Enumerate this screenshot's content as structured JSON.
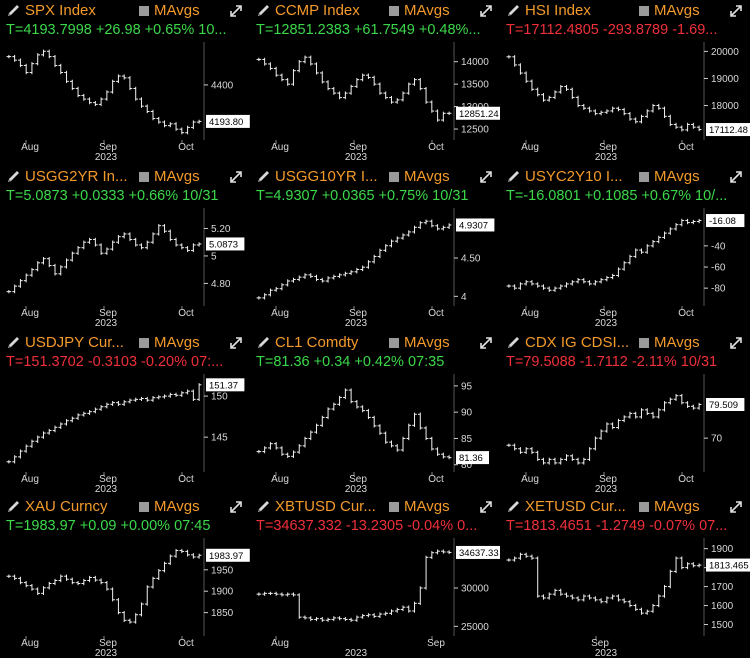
{
  "ui": {
    "mavgs_label": "MAvgs",
    "pen_icon": "pencil-icon",
    "expand_icon": "expand-arrows-icon"
  },
  "chart_data": [
    {
      "type": "bar",
      "title": "SPX Index",
      "quote": "T=4193.7998 +26.98 +0.65% 10...",
      "direction": "up",
      "x_labels": [
        "Aug",
        "Sep",
        "Oct"
      ],
      "year": "2023",
      "y_ticks": [
        4400
      ],
      "ylim": [
        4100,
        4620
      ],
      "last_label": "4193.80",
      "values": [
        4560,
        4540,
        4510,
        4470,
        4520,
        4570,
        4590,
        4560,
        4510,
        4470,
        4420,
        4380,
        4340,
        4320,
        4300,
        4290,
        4320,
        4360,
        4420,
        4450,
        4440,
        4380,
        4320,
        4280,
        4250,
        4210,
        4190,
        4170,
        4180,
        4150,
        4130,
        4160,
        4190,
        4193.8
      ]
    },
    {
      "type": "bar",
      "title": "CCMP Index",
      "quote": "T=12851.2383 +61.7549 +0.48%...",
      "direction": "up",
      "x_labels": [
        "Aug",
        "Sep",
        "Oct"
      ],
      "year": "2023",
      "y_ticks": [
        12500,
        13000,
        13500,
        14000
      ],
      "ylim": [
        12300,
        14350
      ],
      "last_label": "12851.24",
      "values": [
        14050,
        13950,
        13850,
        13700,
        13600,
        13500,
        13800,
        14000,
        14100,
        13950,
        13750,
        13550,
        13400,
        13300,
        13200,
        13300,
        13450,
        13600,
        13700,
        13650,
        13500,
        13300,
        13200,
        13100,
        13150,
        13300,
        13500,
        13600,
        13400,
        13100,
        12900,
        12700,
        12850,
        12851.24
      ]
    },
    {
      "type": "bar",
      "title": "HSI Index",
      "quote": "T=17112.4805 -293.8789 -1.69...",
      "direction": "down",
      "x_labels": [
        "Aug",
        "Sep",
        "Oct"
      ],
      "year": "2023",
      "y_ticks": [
        18000,
        19000,
        20000
      ],
      "ylim": [
        16800,
        20200
      ],
      "last_label": "17112.48",
      "values": [
        19800,
        19500,
        19200,
        18900,
        18600,
        18400,
        18200,
        18300,
        18500,
        18700,
        18600,
        18300,
        18000,
        17900,
        17800,
        17700,
        17750,
        17800,
        17900,
        17850,
        17700,
        17500,
        17400,
        17600,
        17800,
        18000,
        17900,
        17600,
        17300,
        17200,
        17100,
        17300,
        17200,
        17112.48
      ]
    },
    {
      "type": "bar",
      "title": "USGG2YR In...",
      "quote": "T=5.0873 +0.0333 +0.66% 10/31",
      "direction": "up",
      "x_labels": [
        "Aug",
        "Sep",
        "Oct"
      ],
      "year": "2023",
      "y_ticks": [
        4.8,
        5.0,
        5.2
      ],
      "ylim": [
        4.65,
        5.32
      ],
      "last_label": "5.0873",
      "values": [
        4.74,
        4.78,
        4.82,
        4.86,
        4.9,
        4.95,
        4.98,
        4.93,
        4.87,
        4.92,
        4.97,
        5.02,
        5.06,
        5.1,
        5.12,
        5.08,
        5.02,
        5.05,
        5.1,
        5.14,
        5.16,
        5.12,
        5.08,
        5.06,
        5.1,
        5.16,
        5.22,
        5.18,
        5.12,
        5.08,
        5.06,
        5.04,
        5.08,
        5.0873
      ]
    },
    {
      "type": "bar",
      "title": "USGG10YR I...",
      "quote": "T=4.9307 +0.0365 +0.75% 10/31",
      "direction": "up",
      "x_labels": [
        "Aug",
        "Sep",
        "Oct"
      ],
      "year": "2023",
      "y_ticks": [
        4.0,
        4.5
      ],
      "ylim": [
        3.9,
        5.1
      ],
      "last_label": "4.9307",
      "values": [
        3.98,
        4.02,
        4.08,
        4.1,
        4.15,
        4.2,
        4.22,
        4.25,
        4.28,
        4.26,
        4.22,
        4.2,
        4.24,
        4.26,
        4.28,
        4.3,
        4.32,
        4.35,
        4.38,
        4.45,
        4.52,
        4.6,
        4.66,
        4.72,
        4.76,
        4.8,
        4.84,
        4.9,
        4.96,
        4.98,
        4.92,
        4.88,
        4.9,
        4.9307
      ]
    },
    {
      "type": "bar",
      "title": "USYC2Y10 I...",
      "quote": "T=-16.0801 +0.1085 +0.67% 10/...",
      "direction": "up",
      "x_labels": [
        "Aug",
        "Sep",
        "Oct"
      ],
      "year": "2023",
      "y_ticks": [
        -80,
        -60,
        -40
      ],
      "ylim": [
        -95,
        -8
      ],
      "last_label": "-16.08",
      "values": [
        -78,
        -80,
        -76,
        -74,
        -76,
        -78,
        -80,
        -82,
        -80,
        -78,
        -76,
        -74,
        -72,
        -74,
        -76,
        -74,
        -72,
        -70,
        -68,
        -62,
        -56,
        -50,
        -44,
        -46,
        -40,
        -36,
        -32,
        -28,
        -24,
        -20,
        -16,
        -18,
        -17,
        -16.08
      ]
    },
    {
      "type": "bar",
      "title": "USDJPY Cur...",
      "quote": "T=151.3702 -0.3103 -0.20% 07:...",
      "direction": "down",
      "x_labels": [
        "Aug",
        "Sep",
        "Oct"
      ],
      "year": "2023",
      "y_ticks": [
        145,
        150
      ],
      "ylim": [
        141,
        152.2
      ],
      "last_label": "151.37",
      "values": [
        142.0,
        142.6,
        143.3,
        143.9,
        144.5,
        145.0,
        145.5,
        145.8,
        146.2,
        146.6,
        147.0,
        147.3,
        147.7,
        147.9,
        148.1,
        148.4,
        148.7,
        149.0,
        149.2,
        149.0,
        149.3,
        149.5,
        149.6,
        149.7,
        149.5,
        149.8,
        149.9,
        150.0,
        150.2,
        150.1,
        150.4,
        150.6,
        149.6,
        151.37
      ]
    },
    {
      "type": "bar",
      "title": "CL1 Comdty",
      "quote": "T=81.36 +0.34 +0.42% 07:35",
      "direction": "up",
      "x_labels": [
        "Aug",
        "Sep",
        "Oct"
      ],
      "year": "2023",
      "y_ticks": [
        80,
        85,
        90,
        95
      ],
      "ylim": [
        79,
        96.5
      ],
      "last_label": "81.36",
      "values": [
        82.5,
        83.2,
        84.0,
        83.2,
        82.0,
        81.6,
        82.4,
        83.6,
        85.0,
        86.2,
        87.5,
        89.0,
        90.6,
        91.5,
        92.8,
        94.2,
        92.0,
        91.0,
        90.3,
        89.0,
        87.4,
        86.0,
        84.3,
        83.6,
        82.8,
        85.0,
        87.5,
        89.6,
        87.0,
        85.0,
        83.0,
        82.0,
        81.5,
        81.36
      ]
    },
    {
      "type": "bar",
      "title": "CDX IG CDSI...",
      "quote": "T=79.5088 -1.7112 -2.11% 10/31",
      "direction": "down",
      "x_labels": [
        "Aug",
        "Sep",
        "Oct"
      ],
      "year": "2023",
      "y_ticks": [
        70
      ],
      "ylim": [
        61,
        87
      ],
      "last_label": "79.509",
      "values": [
        68,
        67,
        66,
        67,
        66,
        64,
        63,
        64,
        63,
        64,
        65,
        64,
        63,
        64,
        67,
        70,
        72,
        74,
        73,
        75,
        76,
        77,
        76,
        78,
        77,
        76,
        78,
        80,
        81,
        82,
        80,
        79,
        78.5,
        79.509
      ]
    },
    {
      "type": "bar",
      "title": "XAU Curncy",
      "quote": "T=1983.97 +0.09 +0.00% 07:45",
      "direction": "up",
      "x_labels": [
        "Aug",
        "Sep",
        "Oct"
      ],
      "year": "2023",
      "y_ticks": [
        1850,
        1900,
        1950
      ],
      "ylim": [
        1800,
        2015
      ],
      "last_label": "1983.97",
      "values": [
        1935,
        1930,
        1920,
        1913,
        1905,
        1895,
        1908,
        1918,
        1925,
        1935,
        1928,
        1920,
        1918,
        1925,
        1932,
        1926,
        1920,
        1905,
        1880,
        1850,
        1832,
        1828,
        1845,
        1870,
        1910,
        1930,
        1948,
        1965,
        1982,
        1995,
        1993,
        1985,
        1980,
        1983.97
      ]
    },
    {
      "type": "bar",
      "title": "XBTUSD Cur...",
      "quote": "T=34637.332 -13.2305 -0.04% 0...",
      "direction": "down",
      "x_labels": [
        "Aug",
        "Sep"
      ],
      "year": "2023",
      "y_ticks": [
        25000,
        30000
      ],
      "ylim": [
        24000,
        36000
      ],
      "last_label": "34637.33",
      "values": [
        29200,
        29300,
        29300,
        29200,
        29100,
        29200,
        29100,
        26200,
        26100,
        25900,
        26000,
        25800,
        25900,
        26100,
        26000,
        25900,
        25800,
        26200,
        26400,
        26500,
        26300,
        26600,
        26700,
        27000,
        27200,
        27500,
        27000,
        28000,
        30000,
        34000,
        34600,
        34800,
        34700,
        34637.33
      ]
    },
    {
      "type": "bar",
      "title": "XETUSD Cur...",
      "quote": "T=1813.4651 -1.2749 -0.07% 07...",
      "direction": "down",
      "x_labels": [
        "Sep"
      ],
      "year": "2023",
      "y_ticks": [
        1500,
        1600,
        1700,
        1800,
        1900
      ],
      "ylim": [
        1450,
        1935
      ],
      "last_label": "1813.465",
      "values": [
        1840,
        1850,
        1870,
        1860,
        1850,
        1650,
        1640,
        1660,
        1680,
        1660,
        1650,
        1640,
        1630,
        1650,
        1640,
        1630,
        1620,
        1640,
        1650,
        1630,
        1620,
        1600,
        1580,
        1560,
        1570,
        1600,
        1650,
        1700,
        1780,
        1850,
        1800,
        1820,
        1810,
        1813.465
      ]
    }
  ]
}
